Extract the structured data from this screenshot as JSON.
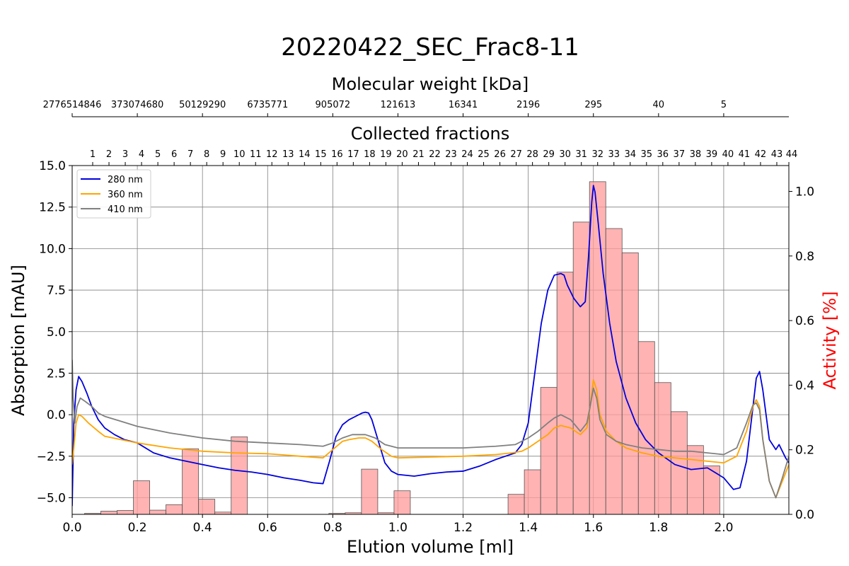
{
  "chart_data": {
    "type": "line",
    "title": "20220422_SEC_Frac8-11",
    "xlabel": "Elution volume [ml]",
    "ylabel": "Absorption [mAU]",
    "y2label": "Activity [%]",
    "xlim": [
      0.0,
      2.2
    ],
    "ylim": [
      -6.0,
      15.0
    ],
    "y2lim": [
      0.0,
      1.08
    ],
    "grid": true,
    "legend_position": "top-left",
    "x_ticks": [
      0.0,
      0.2,
      0.4,
      0.6,
      0.8,
      1.0,
      1.2,
      1.4,
      1.6,
      1.8,
      2.0
    ],
    "x_tick_labels": [
      "0.0",
      "0.2",
      "0.4",
      "0.6",
      "0.8",
      "1.0",
      "1.2",
      "1.4",
      "1.6",
      "1.8",
      "2.0"
    ],
    "y_ticks": [
      -5.0,
      -2.5,
      0.0,
      2.5,
      5.0,
      7.5,
      10.0,
      12.5,
      15.0
    ],
    "y_tick_labels": [
      "−5.0",
      "−2.5",
      "0.0",
      "2.5",
      "5.0",
      "7.5",
      "10.0",
      "12.5",
      "15.0"
    ],
    "y2_ticks": [
      0.0,
      0.2,
      0.4,
      0.6,
      0.8,
      1.0
    ],
    "y2_tick_labels": [
      "0.0",
      "0.2",
      "0.4",
      "0.6",
      "0.8",
      "1.0"
    ],
    "fractions_axis": {
      "label": "Collected fractions",
      "x": [
        0.063,
        0.113,
        0.163,
        0.213,
        0.263,
        0.313,
        0.363,
        0.413,
        0.463,
        0.513,
        0.563,
        0.613,
        0.663,
        0.713,
        0.763,
        0.813,
        0.863,
        0.913,
        0.963,
        1.013,
        1.063,
        1.113,
        1.163,
        1.213,
        1.263,
        1.313,
        1.363,
        1.413,
        1.463,
        1.513,
        1.563,
        1.613,
        1.663,
        1.713,
        1.763,
        1.813,
        1.863,
        1.913,
        1.963,
        2.013,
        2.063,
        2.113,
        2.163,
        2.213
      ],
      "labels": [
        "1",
        "2",
        "3",
        "4",
        "5",
        "6",
        "7",
        "8",
        "9",
        "10",
        "11",
        "12",
        "13",
        "14",
        "15",
        "16",
        "17",
        "18",
        "19",
        "20",
        "21",
        "22",
        "23",
        "24",
        "25",
        "26",
        "27",
        "28",
        "29",
        "30",
        "31",
        "32",
        "33",
        "34",
        "35",
        "36",
        "37",
        "38",
        "39",
        "40",
        "41",
        "42",
        "43",
        "44"
      ]
    },
    "mw_axis": {
      "label": "Molecular weight [kDa]",
      "x": [
        0.0,
        0.2,
        0.4,
        0.6,
        0.8,
        1.0,
        1.2,
        1.4,
        1.6,
        1.8,
        2.0
      ],
      "labels": [
        "2776514846",
        "373074680",
        "50129290",
        "6735771",
        "905072",
        "121613",
        "16341",
        "2196",
        "295",
        "40",
        "5"
      ]
    },
    "series": [
      {
        "name": "280 nm",
        "color": "#0000dd",
        "x": [
          0.0,
          0.005,
          0.012,
          0.02,
          0.03,
          0.045,
          0.06,
          0.08,
          0.1,
          0.13,
          0.16,
          0.2,
          0.25,
          0.3,
          0.35,
          0.4,
          0.45,
          0.5,
          0.55,
          0.6,
          0.65,
          0.7,
          0.74,
          0.77,
          0.79,
          0.81,
          0.83,
          0.85,
          0.87,
          0.89,
          0.9,
          0.91,
          0.92,
          0.94,
          0.96,
          0.98,
          1.0,
          1.05,
          1.1,
          1.15,
          1.2,
          1.25,
          1.3,
          1.33,
          1.36,
          1.38,
          1.4,
          1.42,
          1.44,
          1.46,
          1.48,
          1.5,
          1.51,
          1.52,
          1.54,
          1.56,
          1.575,
          1.585,
          1.595,
          1.6,
          1.605,
          1.615,
          1.63,
          1.65,
          1.67,
          1.7,
          1.73,
          1.76,
          1.8,
          1.85,
          1.9,
          1.95,
          2.0,
          2.03,
          2.05,
          2.07,
          2.09,
          2.1,
          2.11,
          2.12,
          2.14,
          2.16,
          2.17,
          2.18,
          2.19,
          2.2
        ],
        "y": [
          -5.5,
          -0.5,
          1.5,
          2.3,
          2.0,
          1.3,
          0.5,
          -0.3,
          -0.8,
          -1.2,
          -1.5,
          -1.7,
          -2.3,
          -2.6,
          -2.8,
          -3.0,
          -3.2,
          -3.35,
          -3.45,
          -3.6,
          -3.8,
          -3.95,
          -4.1,
          -4.15,
          -2.8,
          -1.3,
          -0.6,
          -0.3,
          -0.1,
          0.1,
          0.15,
          0.1,
          -0.3,
          -1.6,
          -2.9,
          -3.4,
          -3.6,
          -3.7,
          -3.55,
          -3.45,
          -3.4,
          -3.1,
          -2.7,
          -2.5,
          -2.3,
          -1.8,
          -0.5,
          2.5,
          5.5,
          7.5,
          8.4,
          8.5,
          8.4,
          7.8,
          7.0,
          6.5,
          6.8,
          9.5,
          12.8,
          13.8,
          13.4,
          11.5,
          8.5,
          5.5,
          3.2,
          1.0,
          -0.5,
          -1.5,
          -2.3,
          -3.0,
          -3.3,
          -3.2,
          -3.8,
          -4.5,
          -4.4,
          -2.8,
          0.5,
          2.2,
          2.6,
          1.5,
          -1.5,
          -2.1,
          -1.8,
          -2.2,
          -2.6,
          -2.9
        ]
      },
      {
        "name": "360 nm",
        "color": "#ffa500",
        "x": [
          0.0,
          0.005,
          0.012,
          0.02,
          0.03,
          0.05,
          0.08,
          0.1,
          0.15,
          0.2,
          0.3,
          0.4,
          0.5,
          0.6,
          0.7,
          0.77,
          0.8,
          0.83,
          0.85,
          0.88,
          0.9,
          0.92,
          0.95,
          0.98,
          1.0,
          1.1,
          1.2,
          1.3,
          1.35,
          1.38,
          1.4,
          1.43,
          1.46,
          1.48,
          1.5,
          1.53,
          1.56,
          1.58,
          1.59,
          1.6,
          1.61,
          1.62,
          1.64,
          1.67,
          1.7,
          1.75,
          1.8,
          1.85,
          1.9,
          1.95,
          2.0,
          2.04,
          2.07,
          2.09,
          2.1,
          2.11,
          2.12,
          2.14,
          2.16,
          2.18,
          2.2
        ],
        "y": [
          -3.0,
          -2.0,
          -0.5,
          0.0,
          -0.1,
          -0.5,
          -1.0,
          -1.3,
          -1.5,
          -1.7,
          -2.0,
          -2.2,
          -2.3,
          -2.35,
          -2.5,
          -2.6,
          -2.1,
          -1.6,
          -1.5,
          -1.4,
          -1.4,
          -1.6,
          -2.1,
          -2.5,
          -2.6,
          -2.55,
          -2.5,
          -2.4,
          -2.3,
          -2.2,
          -2.0,
          -1.6,
          -1.2,
          -0.8,
          -0.65,
          -0.8,
          -1.2,
          -0.8,
          0.5,
          2.1,
          1.5,
          0.0,
          -1.0,
          -1.6,
          -2.0,
          -2.3,
          -2.5,
          -2.6,
          -2.7,
          -2.8,
          -2.9,
          -2.5,
          -1.0,
          0.5,
          0.9,
          0.5,
          -1.5,
          -4.0,
          -5.0,
          -4.0,
          -3.0
        ]
      },
      {
        "name": "410 nm",
        "color": "#808080",
        "x": [
          0.0,
          0.003,
          0.008,
          0.015,
          0.025,
          0.04,
          0.06,
          0.08,
          0.1,
          0.15,
          0.2,
          0.3,
          0.4,
          0.5,
          0.6,
          0.7,
          0.77,
          0.8,
          0.83,
          0.86,
          0.9,
          0.93,
          0.96,
          1.0,
          1.1,
          1.2,
          1.3,
          1.36,
          1.4,
          1.43,
          1.46,
          1.48,
          1.5,
          1.53,
          1.56,
          1.58,
          1.59,
          1.6,
          1.61,
          1.62,
          1.64,
          1.67,
          1.7,
          1.75,
          1.8,
          1.85,
          1.9,
          1.95,
          2.0,
          2.04,
          2.07,
          2.09,
          2.1,
          2.11,
          2.12,
          2.14,
          2.16,
          2.18,
          2.2
        ],
        "y": [
          3.3,
          1.0,
          -0.5,
          0.5,
          1.0,
          0.8,
          0.5,
          0.1,
          -0.1,
          -0.4,
          -0.7,
          -1.1,
          -1.4,
          -1.6,
          -1.7,
          -1.8,
          -1.9,
          -1.7,
          -1.4,
          -1.2,
          -1.2,
          -1.4,
          -1.8,
          -2.0,
          -2.0,
          -2.0,
          -1.9,
          -1.8,
          -1.4,
          -1.0,
          -0.5,
          -0.2,
          0.0,
          -0.3,
          -1.0,
          -0.5,
          0.5,
          1.6,
          1.0,
          -0.3,
          -1.2,
          -1.6,
          -1.8,
          -2.0,
          -2.1,
          -2.2,
          -2.2,
          -2.3,
          -2.4,
          -2.0,
          -0.5,
          0.6,
          0.7,
          0.3,
          -1.5,
          -4.0,
          -5.0,
          -3.8,
          -2.5
        ]
      }
    ],
    "activity_bars": {
      "name": "Activity",
      "color": "#ff9999",
      "width": 0.05,
      "x": [
        0.063,
        0.113,
        0.163,
        0.213,
        0.263,
        0.313,
        0.363,
        0.413,
        0.463,
        0.513,
        0.813,
        0.863,
        0.913,
        0.963,
        1.013,
        1.363,
        1.413,
        1.463,
        1.513,
        1.563,
        1.613,
        1.663,
        1.713,
        1.763,
        1.813,
        1.863,
        1.913,
        1.963
      ],
      "values": [
        0.003,
        0.01,
        0.012,
        0.104,
        0.013,
        0.03,
        0.203,
        0.047,
        0.007,
        0.24,
        0.003,
        0.005,
        0.14,
        0.005,
        0.073,
        0.062,
        0.138,
        0.393,
        0.75,
        0.905,
        1.03,
        0.885,
        0.81,
        0.535,
        0.408,
        0.318,
        0.213,
        0.15
      ]
    }
  }
}
